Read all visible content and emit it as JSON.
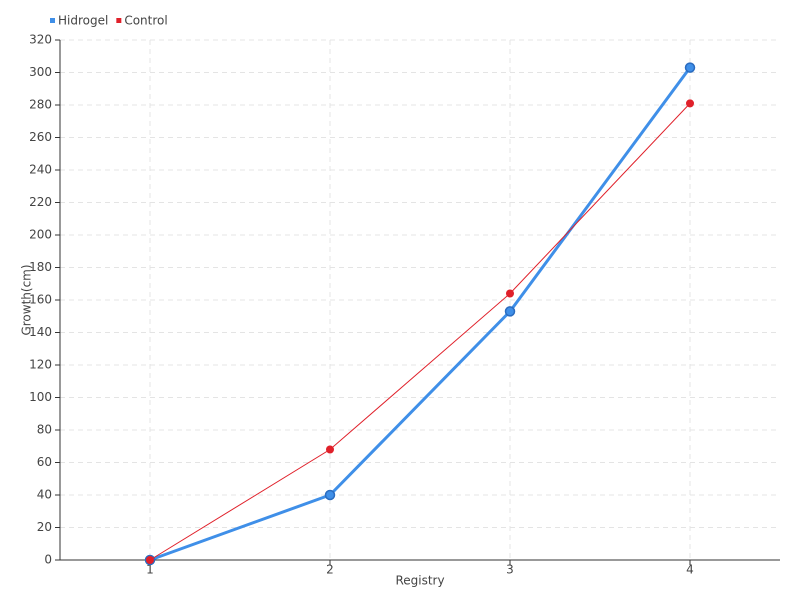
{
  "chart_data": {
    "type": "line",
    "x_label": "Registry",
    "y_label": "Growth(cm)",
    "categories": [
      "1",
      "2",
      "3",
      "4"
    ],
    "series": [
      {
        "name": "Hidrogel",
        "color": "#3f8fe8",
        "values": [
          0,
          40,
          153,
          303
        ]
      },
      {
        "name": "Control",
        "color": "#e0202a",
        "values": [
          0,
          68,
          164,
          281
        ]
      }
    ],
    "ylim": [
      0,
      320
    ],
    "yticks": [
      0,
      20,
      40,
      60,
      80,
      100,
      120,
      140,
      160,
      180,
      200,
      220,
      240,
      260,
      280,
      300,
      320
    ],
    "grid": true,
    "legend": "top-left"
  }
}
